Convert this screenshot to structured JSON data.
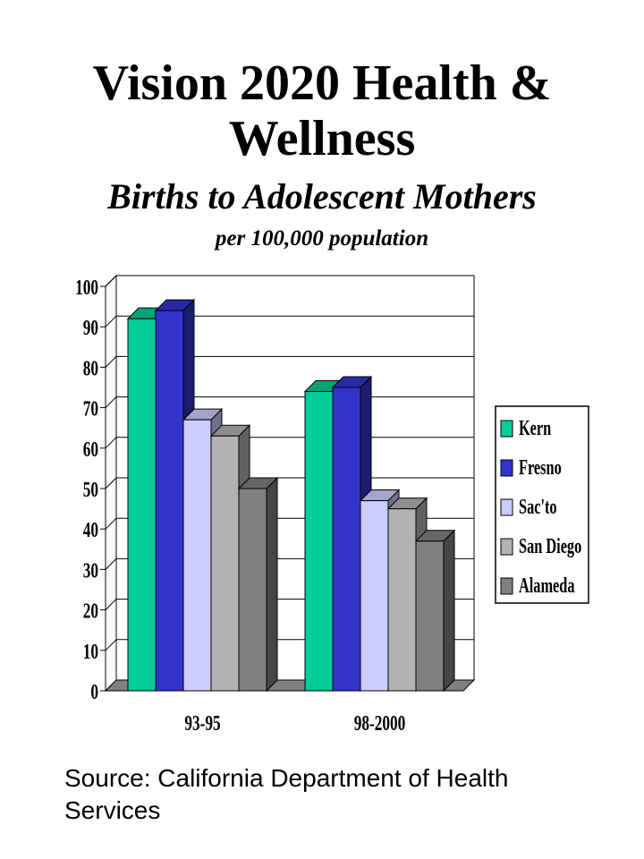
{
  "title_line1": "Vision 2020 Health &",
  "title_line2": "Wellness",
  "subtitle": "Births to Adolescent Mothers",
  "subsubtitle": "per 100,000 population",
  "source": "Source: California Department of Health Services",
  "chart_data": {
    "type": "bar",
    "categories": [
      "93-95",
      "98-2000"
    ],
    "series": [
      {
        "name": "Kern",
        "values": [
          92,
          74
        ],
        "color": "#00cc99"
      },
      {
        "name": "Fresno",
        "values": [
          94,
          75
        ],
        "color": "#3333cc"
      },
      {
        "name": "Sac'to",
        "values": [
          67,
          47
        ],
        "color": "#ccccff"
      },
      {
        "name": "San Diego",
        "values": [
          63,
          45
        ],
        "color": "#b2b2b2"
      },
      {
        "name": "Alameda",
        "values": [
          50,
          37
        ],
        "color": "#808080"
      }
    ],
    "yticks": [
      0,
      10,
      20,
      30,
      40,
      50,
      60,
      70,
      80,
      90,
      100
    ],
    "ylim": [
      0,
      100
    ],
    "grid": true,
    "legend": "right",
    "style": "3d"
  }
}
